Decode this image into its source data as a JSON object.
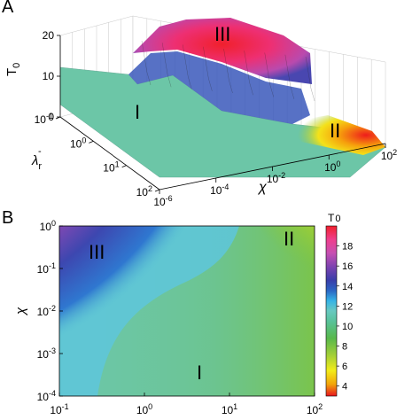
{
  "panels": {
    "a_label": "A",
    "b_label": "B"
  },
  "chart_data": [
    {
      "type": "surface",
      "panel": "A",
      "zlabel_main": "T",
      "zlabel_sub": "0",
      "xlabel": "χ",
      "ylabel_main": "λ",
      "ylabel_sub": "r",
      "ylabel_sup": "-",
      "z_ticks": [
        "0",
        "10",
        "20"
      ],
      "y_ticks": [
        {
          "base": "10",
          "exp": "-1"
        },
        {
          "base": "10",
          "exp": "0"
        },
        {
          "base": "10",
          "exp": "1"
        },
        {
          "base": "10",
          "exp": "2"
        }
      ],
      "x_ticks": [
        {
          "base": "10",
          "exp": "-6"
        },
        {
          "base": "10",
          "exp": "-4"
        },
        {
          "base": "10",
          "exp": "-2"
        },
        {
          "base": "10",
          "exp": "0"
        },
        {
          "base": "10",
          "exp": "2"
        }
      ],
      "zlim": [
        0,
        20
      ],
      "x_scale": "log",
      "xlim": [
        1e-06,
        100
      ],
      "y_scale": "log",
      "ylim": [
        0.1,
        100
      ],
      "grid": true,
      "region_labels": [
        "I",
        "II",
        "III"
      ],
      "region_values": {
        "I": 10,
        "II": 4,
        "III": 19
      }
    },
    {
      "type": "heatmap",
      "panel": "B",
      "xlabel": "",
      "ylabel": "χ",
      "x_scale": "log",
      "xlim": [
        0.1,
        100
      ],
      "y_scale": "log",
      "ylim": [
        0.0001,
        1
      ],
      "x_ticks": [
        {
          "base": "10",
          "exp": "-1"
        },
        {
          "base": "10",
          "exp": "0"
        },
        {
          "base": "10",
          "exp": "1"
        },
        {
          "base": "10",
          "exp": "2"
        }
      ],
      "y_ticks": [
        {
          "base": "10",
          "exp": "0"
        },
        {
          "base": "10",
          "exp": "-1"
        },
        {
          "base": "10",
          "exp": "-2"
        },
        {
          "base": "10",
          "exp": "-3"
        },
        {
          "base": "10",
          "exp": "-4"
        }
      ],
      "colorbar": {
        "title_main": "T",
        "title_sub": "0",
        "range": [
          3,
          20
        ],
        "ticks": [
          "18",
          "16",
          "14",
          "12",
          "10",
          "8",
          "6",
          "4"
        ],
        "colors": [
          "#e8151f",
          "#f2a50a",
          "#f2ec1a",
          "#a3cf38",
          "#58b84c",
          "#59c29a",
          "#68c9c0",
          "#35b3e6",
          "#2b66c4",
          "#393eaa",
          "#7d43b0",
          "#c64fb2",
          "#ef3f8d",
          "#f0202c"
        ]
      },
      "region_labels": [
        {
          "label": "III",
          "x": 0.13,
          "y": 0.3
        },
        {
          "label": "II",
          "x": 70,
          "y": 0.45
        },
        {
          "label": "I",
          "x": 4,
          "y": 0.0004
        }
      ]
    }
  ]
}
